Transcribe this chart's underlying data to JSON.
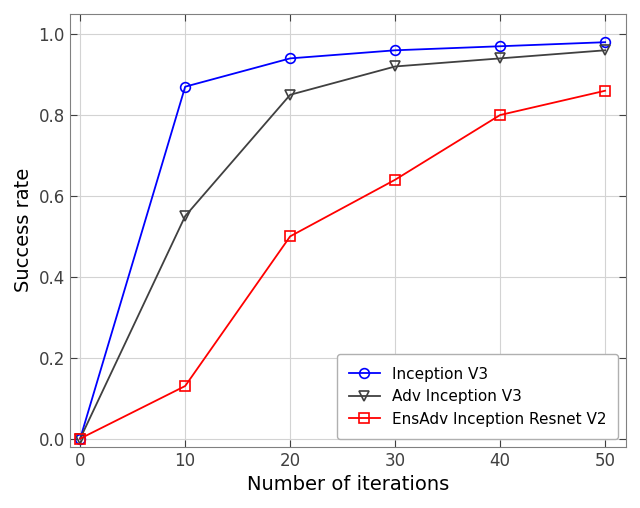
{
  "x": [
    0,
    10,
    20,
    30,
    40,
    50
  ],
  "inception_v3": [
    0.0,
    0.87,
    0.94,
    0.96,
    0.97,
    0.98
  ],
  "adv_inception_v3": [
    0.0,
    0.55,
    0.85,
    0.92,
    0.94,
    0.96
  ],
  "ensadv_inception_resnet_v2": [
    0.0,
    0.13,
    0.5,
    0.64,
    0.8,
    0.86
  ],
  "line_color_inception": "#0000ff",
  "line_color_adv": "#404040",
  "line_color_ensadv": "#ff0000",
  "marker_inception": "o",
  "marker_adv": "v",
  "marker_ensadv": "s",
  "label_inception": "Inception V3",
  "label_adv": "Adv Inception V3",
  "label_ensadv": "EnsAdv Inception Resnet V2",
  "xlabel": "Number of iterations",
  "ylabel": "Success rate",
  "xlim": [
    -1,
    52
  ],
  "ylim": [
    -0.02,
    1.05
  ],
  "yticks": [
    0,
    0.2,
    0.4,
    0.6,
    0.8,
    1.0
  ],
  "xticks": [
    0,
    10,
    20,
    30,
    40,
    50
  ],
  "grid": true,
  "legend_loc": "lower right",
  "linewidth": 1.3,
  "markersize": 7,
  "background_color": "#ffffff",
  "axis_fontsize": 14,
  "tick_fontsize": 12,
  "legend_fontsize": 11,
  "spine_color": "#808080",
  "grid_color": "#d3d3d3"
}
